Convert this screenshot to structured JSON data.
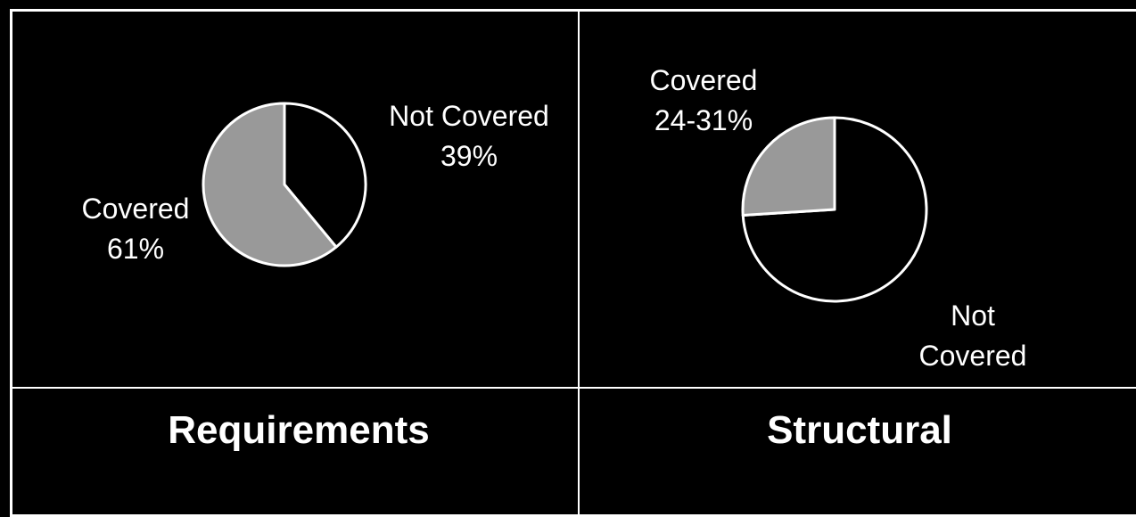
{
  "colors": {
    "background": "#000000",
    "frame": "#ffffff",
    "covered_fill": "#999999",
    "not_covered_fill": "#000000",
    "slice_stroke": "#ffffff"
  },
  "chart_data": [
    {
      "type": "pie",
      "title": "Requirements",
      "start": "top",
      "direction": "clockwise",
      "slices": [
        {
          "label_lines": [
            "Not Covered",
            "39%"
          ],
          "value": 39,
          "color": "#000000"
        },
        {
          "label_lines": [
            "Covered",
            "61%"
          ],
          "value": 61,
          "color": "#999999"
        }
      ]
    },
    {
      "type": "pie",
      "title": "Structural",
      "start": "top",
      "direction": "clockwise",
      "slices": [
        {
          "label_lines": [
            "Not",
            "Covered"
          ],
          "value": 74,
          "color": "#000000"
        },
        {
          "label_lines": [
            "Covered",
            "24-31%"
          ],
          "value": 26,
          "color": "#999999"
        }
      ]
    }
  ]
}
